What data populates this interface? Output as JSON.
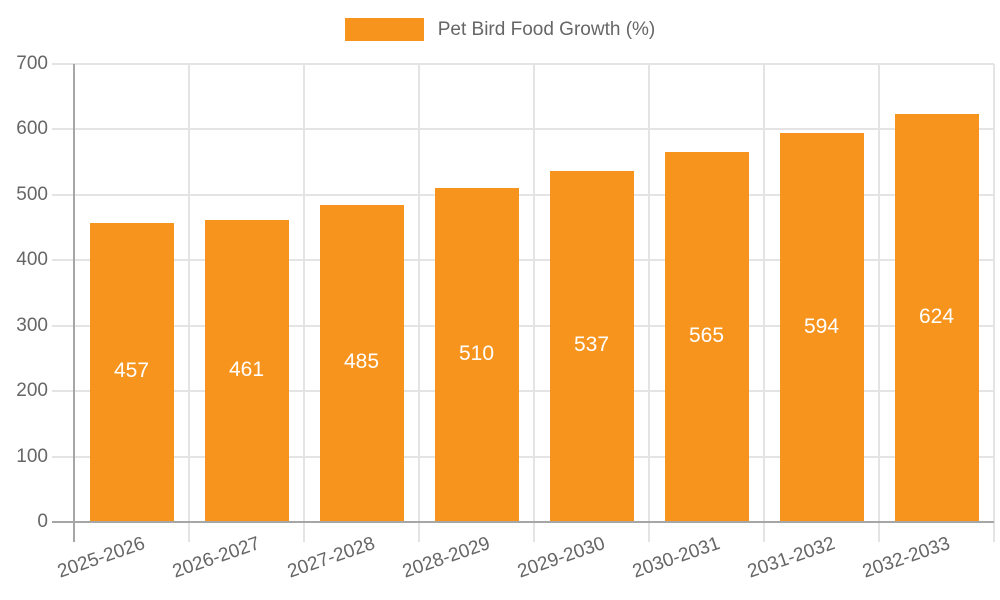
{
  "legend": {
    "label": "Pet Bird Food Growth (%)"
  },
  "chart_data": {
    "type": "bar",
    "title": "Pet Bird Food Growth (%)",
    "categories": [
      "2025-2026",
      "2026-2027",
      "2027-2028",
      "2028-2029",
      "2029-2030",
      "2030-2031",
      "2031-2032",
      "2032-2033"
    ],
    "series": [
      {
        "name": "Pet Bird Food Growth (%)",
        "values": [
          457,
          461,
          485,
          510,
          537,
          565,
          594,
          624
        ]
      }
    ],
    "value_labels_shown": true,
    "xlabel": "",
    "ylabel": "",
    "ylim": [
      0,
      700
    ],
    "ytick_step": 100,
    "yticks": [
      0,
      100,
      200,
      300,
      400,
      500,
      600,
      700
    ],
    "grid": "on",
    "legend_position": "top-center",
    "x_tick_rotation_deg": -19
  },
  "colors": {
    "bar": "#F7941E",
    "grid": "#E4E4E4",
    "axis": "#A6A6A6",
    "tick_text": "#666666",
    "value_label_text": "#FFFFFF",
    "background": "#FFFFFF"
  }
}
